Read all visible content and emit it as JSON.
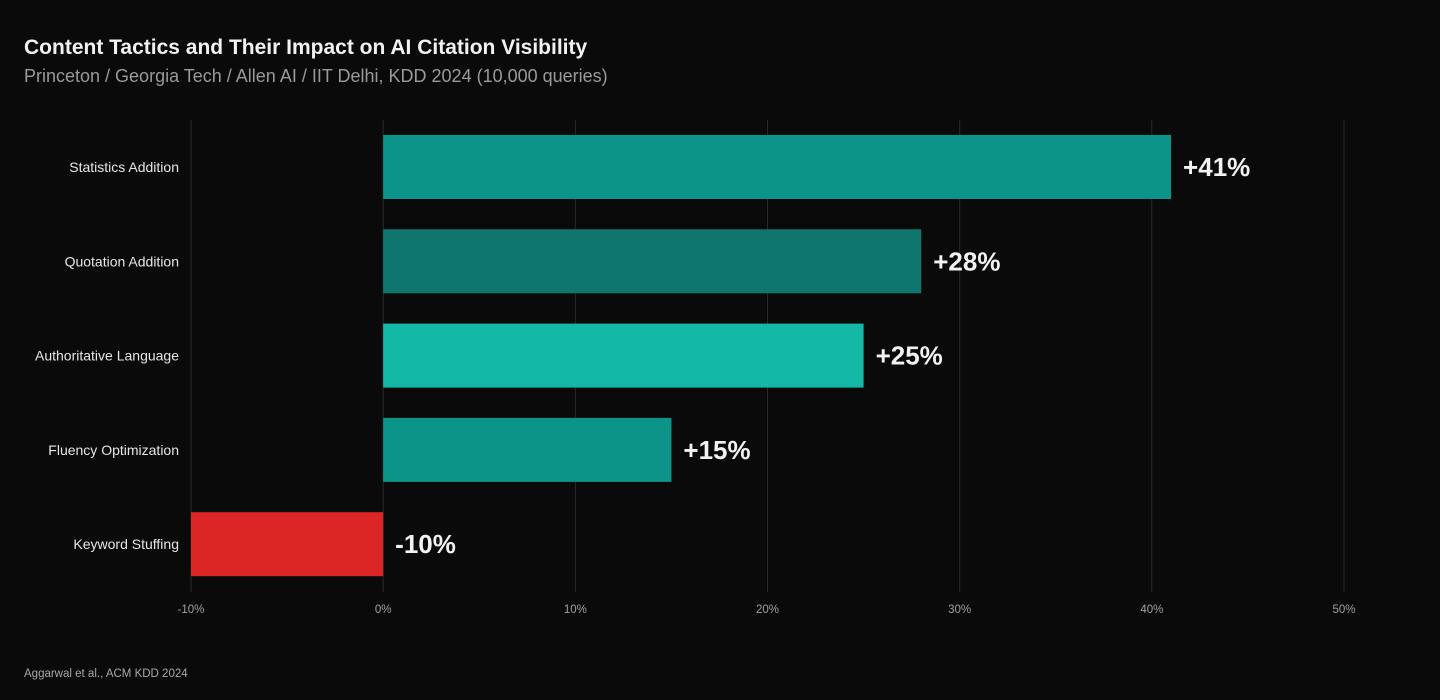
{
  "header": {
    "title": "Content Tactics and Their Impact on AI Citation Visibility",
    "subtitle": "Princeton / Georgia Tech / Allen AI / IIT Delhi, KDD 2024 (10,000 queries)"
  },
  "footer": {
    "source": "Aggarwal et al., ACM KDD 2024"
  },
  "chart_data": {
    "type": "bar",
    "orientation": "horizontal",
    "categories": [
      "Statistics Addition",
      "Quotation Addition",
      "Authoritative Language",
      "Fluency Optimization",
      "Keyword Stuffing"
    ],
    "values": [
      41,
      28,
      25,
      15,
      -10
    ],
    "value_labels": [
      "+41%",
      "+28%",
      "+25%",
      "+15%",
      "-10%"
    ],
    "colors": [
      "#0d9488",
      "#0f766e",
      "#14b8a6",
      "#0d9488",
      "#dc2626"
    ],
    "xlim": [
      -10,
      50
    ],
    "xticks": [
      -10,
      0,
      10,
      20,
      30,
      40,
      50
    ],
    "xtick_labels": [
      "-10%",
      "0%",
      "10%",
      "20%",
      "30%",
      "40%",
      "50%"
    ],
    "grid": true,
    "gridline_color": "#2a2a2a",
    "title": "Content Tactics and Their Impact on AI Citation Visibility",
    "subtitle": "Princeton / Georgia Tech / Allen AI / IIT Delhi, KDD 2024 (10,000 queries)",
    "xlabel": "",
    "ylabel": ""
  }
}
